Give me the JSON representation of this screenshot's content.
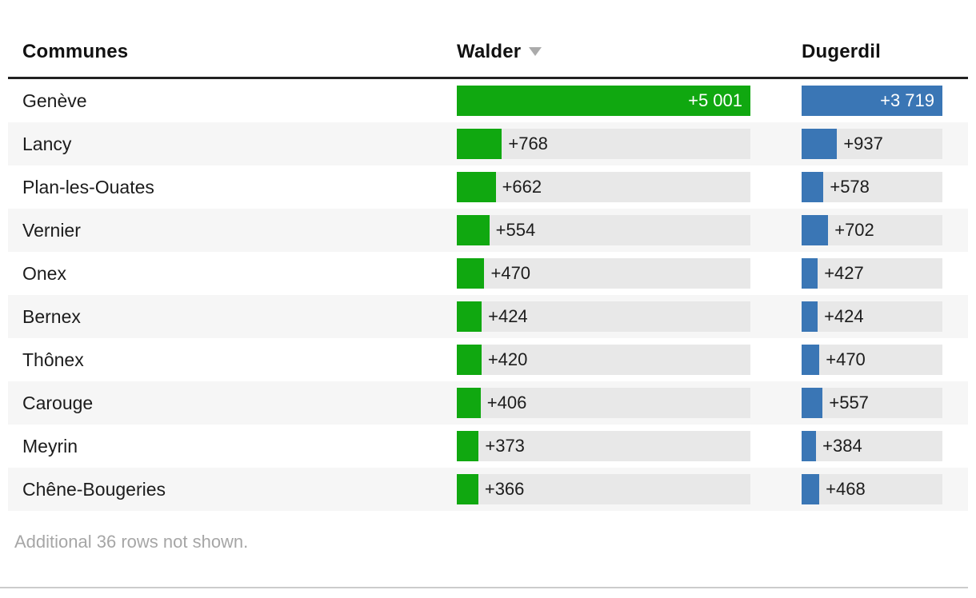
{
  "chart_data": {
    "type": "table",
    "first_column_header": "Communes",
    "categories": [
      "Genève",
      "Lancy",
      "Plan-les-Ouates",
      "Vernier",
      "Onex",
      "Bernex",
      "Thônex",
      "Carouge",
      "Meyrin",
      "Chêne-Bougeries"
    ],
    "series": [
      {
        "name": "Walder",
        "color": "#10a810",
        "bar_max": 5001,
        "values": [
          5001,
          768,
          662,
          554,
          470,
          424,
          420,
          406,
          373,
          366
        ],
        "labels": [
          "+5 001",
          "+768",
          "+662",
          "+554",
          "+470",
          "+424",
          "+420",
          "+406",
          "+373",
          "+366"
        ]
      },
      {
        "name": "Dugerdil",
        "color": "#3a76b5",
        "bar_max": 3719,
        "values": [
          3719,
          937,
          578,
          702,
          427,
          424,
          470,
          557,
          384,
          468
        ],
        "labels": [
          "+3 719",
          "+937",
          "+578",
          "+702",
          "+427",
          "+424",
          "+470",
          "+557",
          "+384",
          "+468"
        ]
      }
    ],
    "sorted_by": {
      "column": "Walder",
      "direction": "desc"
    },
    "note": "Additional 36 rows not shown.",
    "layout_hints": {
      "bar_track_color": "#e8e8e8",
      "row_stripe_color": "#f6f6f6",
      "header_rule_color": "#222222",
      "divider_color": "#cccccc",
      "value_text_color": "#1c1c1c",
      "note_text_color": "#a6a6a6"
    }
  }
}
